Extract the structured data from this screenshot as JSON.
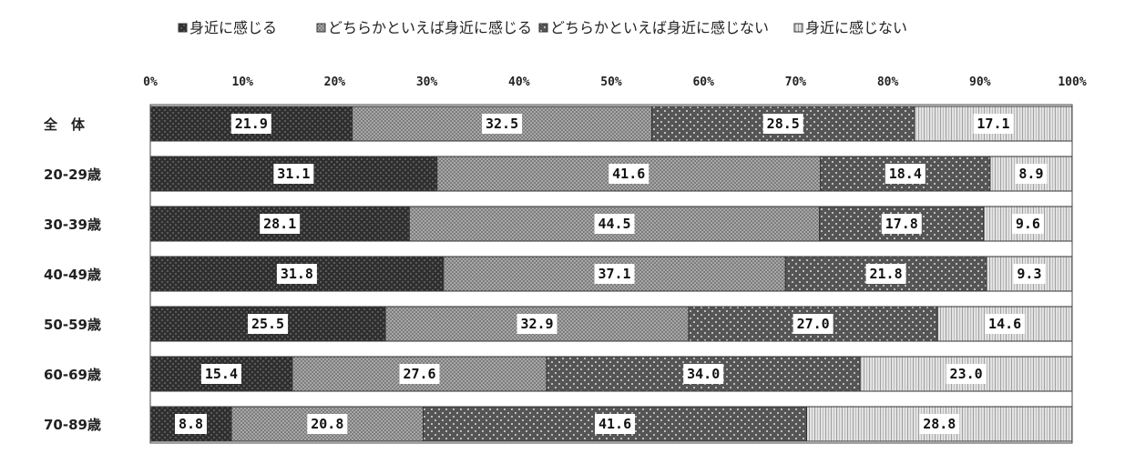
{
  "chart_data": {
    "type": "bar",
    "orientation": "horizontal",
    "stacked": "percent",
    "categories": [
      "全　体",
      "20-29歳",
      "30-39歳",
      "40-49歳",
      "50-59歳",
      "60-69歳",
      "70-89歳"
    ],
    "series": [
      {
        "name": "身近に感じる",
        "values": [
          21.9,
          31.1,
          28.1,
          31.8,
          25.5,
          15.4,
          8.8
        ],
        "color": "#3a3a3a"
      },
      {
        "name": "どちらかといえば身近に感じる",
        "values": [
          32.5,
          41.6,
          44.5,
          37.1,
          32.9,
          27.6,
          20.8
        ],
        "color": "#8a8a8a"
      },
      {
        "name": "どちらかといえば身近に感じない",
        "values": [
          28.5,
          18.4,
          17.8,
          21.8,
          27.0,
          34.0,
          41.6
        ],
        "color": "#6e6e6e"
      },
      {
        "name": "身近に感じない",
        "values": [
          17.1,
          8.9,
          9.6,
          9.3,
          14.6,
          23.0,
          28.8
        ],
        "color": "#cfcfcf"
      }
    ],
    "value_labels": [
      [
        "21.9",
        "32.5",
        "28.5",
        "17.1"
      ],
      [
        "31.1",
        "41.6",
        "18.4",
        "8.9"
      ],
      [
        "28.1",
        "44.5",
        "17.8",
        "9.6"
      ],
      [
        "31.8",
        "37.1",
        "21.8",
        "9.3"
      ],
      [
        "25.5",
        "32.9",
        "27.0",
        "14.6"
      ],
      [
        "15.4",
        "27.6",
        "34.0",
        "23.0"
      ],
      [
        "8.8",
        "20.8",
        "41.6",
        "28.8"
      ]
    ],
    "xlim": [
      0,
      100
    ],
    "x_ticks": [
      "0%",
      "10%",
      "20%",
      "30%",
      "40%",
      "50%",
      "60%",
      "70%",
      "80%",
      "90%",
      "100%"
    ],
    "grid": false,
    "legend_position": "top"
  }
}
